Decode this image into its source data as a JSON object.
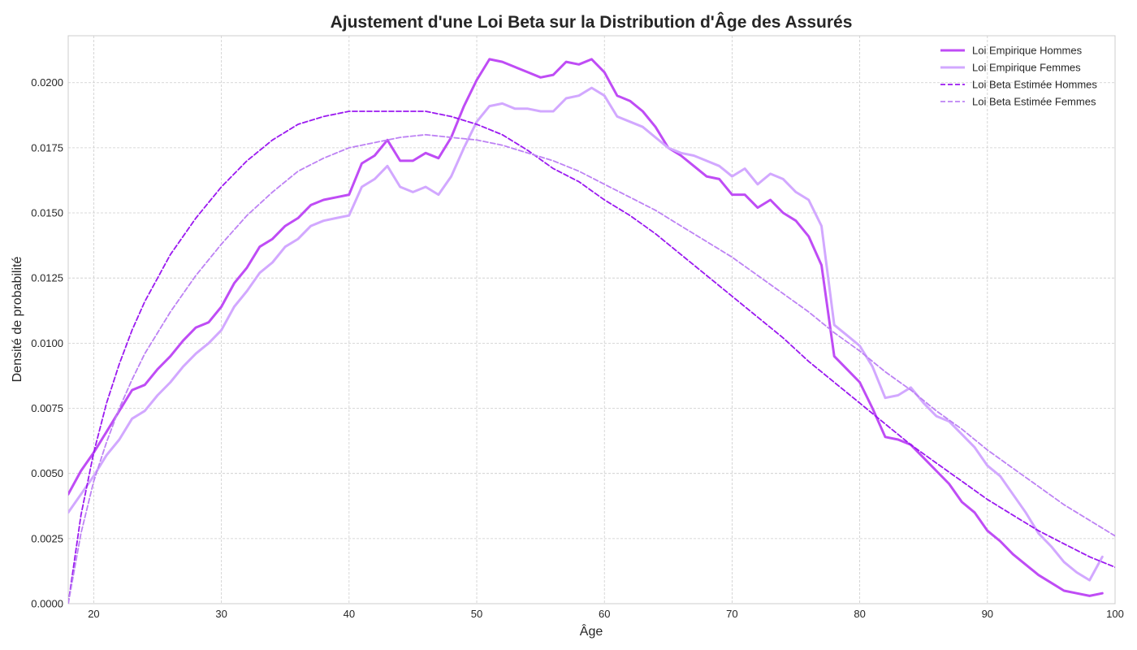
{
  "chart_data": {
    "type": "line",
    "title": "Ajustement d'une Loi Beta sur la Distribution d'Âge des Assurés",
    "xlabel": "Âge",
    "ylabel": "Densité de probabilité",
    "xlim": [
      18,
      100
    ],
    "ylim": [
      0,
      0.0218
    ],
    "xticks": [
      20,
      30,
      40,
      50,
      60,
      70,
      80,
      90,
      100
    ],
    "yticks": [
      0.0,
      0.0025,
      0.005,
      0.0075,
      0.01,
      0.0125,
      0.015,
      0.0175,
      0.02
    ],
    "ytick_labels": [
      "0.0000",
      "0.0025",
      "0.0050",
      "0.0075",
      "0.0100",
      "0.0125",
      "0.0150",
      "0.0175",
      "0.0200"
    ],
    "grid": true,
    "legend_position": "top-right",
    "series": [
      {
        "name": "Loi Empirique Hommes",
        "color": "#bf4cf5",
        "style": "solid",
        "x": [
          18,
          19,
          20,
          21,
          22,
          23,
          24,
          25,
          26,
          27,
          28,
          29,
          30,
          31,
          32,
          33,
          34,
          35,
          36,
          37,
          38,
          39,
          40,
          41,
          42,
          43,
          44,
          45,
          46,
          47,
          48,
          49,
          50,
          51,
          52,
          53,
          54,
          55,
          56,
          57,
          58,
          59,
          60,
          61,
          62,
          63,
          64,
          65,
          66,
          67,
          68,
          69,
          70,
          71,
          72,
          73,
          74,
          75,
          76,
          77,
          78,
          79,
          80,
          81,
          82,
          83,
          84,
          85,
          86,
          87,
          88,
          89,
          90,
          91,
          92,
          93,
          94,
          95,
          96,
          97,
          98,
          99
        ],
        "y": [
          0.0042,
          0.0051,
          0.0058,
          0.0066,
          0.0074,
          0.0082,
          0.0084,
          0.009,
          0.0095,
          0.0101,
          0.0106,
          0.0108,
          0.0114,
          0.0123,
          0.0129,
          0.0137,
          0.014,
          0.0145,
          0.0148,
          0.0153,
          0.0155,
          0.0156,
          0.0157,
          0.0169,
          0.0172,
          0.0178,
          0.017,
          0.017,
          0.0173,
          0.0171,
          0.0179,
          0.0191,
          0.0201,
          0.0209,
          0.0208,
          0.0206,
          0.0204,
          0.0202,
          0.0203,
          0.0208,
          0.0207,
          0.0209,
          0.0204,
          0.0195,
          0.0193,
          0.0189,
          0.0183,
          0.0175,
          0.0172,
          0.0168,
          0.0164,
          0.0163,
          0.0157,
          0.0157,
          0.0152,
          0.0155,
          0.015,
          0.0147,
          0.0141,
          0.013,
          0.0095,
          0.009,
          0.0085,
          0.0075,
          0.0064,
          0.0063,
          0.0061,
          0.0056,
          0.0051,
          0.0046,
          0.0039,
          0.0035,
          0.0028,
          0.0024,
          0.0019,
          0.0015,
          0.0011,
          0.0008,
          0.0005,
          0.0004,
          0.0003,
          0.0004
        ]
      },
      {
        "name": "Loi Empirique Femmes",
        "color": "#d2a8ff",
        "style": "solid",
        "x": [
          18,
          19,
          20,
          21,
          22,
          23,
          24,
          25,
          26,
          27,
          28,
          29,
          30,
          31,
          32,
          33,
          34,
          35,
          36,
          37,
          38,
          39,
          40,
          41,
          42,
          43,
          44,
          45,
          46,
          47,
          48,
          49,
          50,
          51,
          52,
          53,
          54,
          55,
          56,
          57,
          58,
          59,
          60,
          61,
          62,
          63,
          64,
          65,
          66,
          67,
          68,
          69,
          70,
          71,
          72,
          73,
          74,
          75,
          76,
          77,
          78,
          79,
          80,
          81,
          82,
          83,
          84,
          85,
          86,
          87,
          88,
          89,
          90,
          91,
          92,
          93,
          94,
          95,
          96,
          97,
          98,
          99
        ],
        "y": [
          0.0035,
          0.0042,
          0.0049,
          0.0057,
          0.0063,
          0.0071,
          0.0074,
          0.008,
          0.0085,
          0.0091,
          0.0096,
          0.01,
          0.0105,
          0.0114,
          0.012,
          0.0127,
          0.0131,
          0.0137,
          0.014,
          0.0145,
          0.0147,
          0.0148,
          0.0149,
          0.016,
          0.0163,
          0.0168,
          0.016,
          0.0158,
          0.016,
          0.0157,
          0.0164,
          0.0175,
          0.0185,
          0.0191,
          0.0192,
          0.019,
          0.019,
          0.0189,
          0.0189,
          0.0194,
          0.0195,
          0.0198,
          0.0195,
          0.0187,
          0.0185,
          0.0183,
          0.0179,
          0.0175,
          0.0173,
          0.0172,
          0.017,
          0.0168,
          0.0164,
          0.0167,
          0.0161,
          0.0165,
          0.0163,
          0.0158,
          0.0155,
          0.0145,
          0.0107,
          0.0103,
          0.0099,
          0.0091,
          0.0079,
          0.008,
          0.0083,
          0.0077,
          0.0072,
          0.007,
          0.0065,
          0.006,
          0.0053,
          0.0049,
          0.0042,
          0.0035,
          0.0027,
          0.0022,
          0.0016,
          0.0012,
          0.0009,
          0.0018
        ]
      },
      {
        "name": "Loi Beta Estimée Hommes",
        "color": "#9b19f0",
        "style": "dashed",
        "x": [
          18,
          19,
          20,
          21,
          22,
          23,
          24,
          26,
          28,
          30,
          32,
          34,
          36,
          38,
          40,
          42,
          44,
          46,
          48,
          50,
          52,
          54,
          56,
          58,
          60,
          62,
          64,
          66,
          68,
          70,
          72,
          74,
          76,
          78,
          80,
          82,
          84,
          86,
          88,
          90,
          92,
          94,
          96,
          98,
          100
        ],
        "y": [
          0.0,
          0.0034,
          0.0058,
          0.0077,
          0.0092,
          0.0105,
          0.0116,
          0.0134,
          0.0148,
          0.016,
          0.017,
          0.0178,
          0.0184,
          0.0187,
          0.0189,
          0.0189,
          0.0189,
          0.0189,
          0.0187,
          0.0184,
          0.018,
          0.0174,
          0.0167,
          0.0162,
          0.0155,
          0.0149,
          0.0142,
          0.0134,
          0.0126,
          0.0118,
          0.011,
          0.0102,
          0.0093,
          0.0085,
          0.0077,
          0.0069,
          0.0061,
          0.0054,
          0.0047,
          0.004,
          0.0034,
          0.0028,
          0.0023,
          0.0018,
          0.0014
        ]
      },
      {
        "name": "Loi Beta Estimée Femmes",
        "color": "#bd82f4",
        "style": "dashed",
        "x": [
          18,
          19,
          20,
          21,
          22,
          23,
          24,
          26,
          28,
          30,
          32,
          34,
          36,
          38,
          40,
          42,
          44,
          46,
          48,
          50,
          52,
          54,
          56,
          58,
          60,
          62,
          64,
          66,
          68,
          70,
          72,
          74,
          76,
          78,
          80,
          82,
          84,
          86,
          88,
          90,
          92,
          94,
          96,
          98,
          100
        ],
        "y": [
          0.0,
          0.0027,
          0.0047,
          0.0062,
          0.0075,
          0.0086,
          0.0096,
          0.0112,
          0.0126,
          0.0138,
          0.0149,
          0.0158,
          0.0166,
          0.0171,
          0.0175,
          0.0177,
          0.0179,
          0.018,
          0.0179,
          0.0178,
          0.0176,
          0.0173,
          0.017,
          0.0166,
          0.0161,
          0.0156,
          0.0151,
          0.0145,
          0.0139,
          0.0133,
          0.0126,
          0.0119,
          0.0112,
          0.0104,
          0.0097,
          0.0089,
          0.0082,
          0.0074,
          0.0067,
          0.0059,
          0.0052,
          0.0045,
          0.0038,
          0.0032,
          0.0026
        ]
      }
    ]
  }
}
